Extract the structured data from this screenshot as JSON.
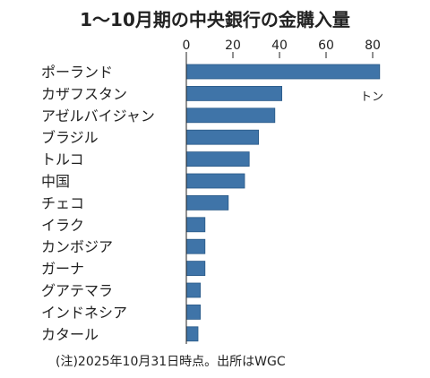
{
  "chart_data": {
    "type": "bar",
    "orientation": "horizontal",
    "title": "1～10月期の中央銀行の金購入量",
    "unit_label": "トン",
    "categories": [
      "ポーランド",
      "カザフスタン",
      "アゼルバイジャン",
      "ブラジル",
      "トルコ",
      "中国",
      "チェコ",
      "イラク",
      "カンボジア",
      "ガーナ",
      "グアテマラ",
      "インドネシア",
      "カタール"
    ],
    "values": [
      83,
      41,
      38,
      31,
      27,
      25,
      18,
      8,
      8,
      8,
      6,
      6,
      5
    ],
    "xlim": [
      0,
      85
    ],
    "x_ticks": [
      "0",
      "20",
      "40",
      "60",
      "80"
    ],
    "x_tick_values": [
      0,
      20,
      40,
      60,
      80
    ],
    "axis_position": "top",
    "grid": false,
    "bar_color": "#3f74a8",
    "bar_border_color": "#2a5a88",
    "note": "(注)2025年10月31日時点。出所はWGC"
  }
}
